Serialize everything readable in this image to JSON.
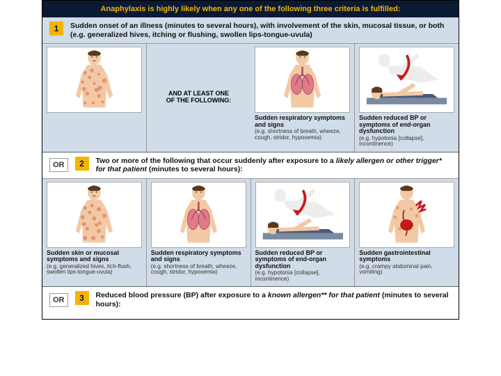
{
  "colors": {
    "header_bg": "#0b1a33",
    "header_fg": "#f5b400",
    "accent": "#f5b400",
    "panel_bg": "#d0dce8",
    "skin": "#f2c9a4",
    "hives": "#d77a5a",
    "hair": "#5a3a1f",
    "lung": "#e07a8a",
    "arrow": "#c61a1a",
    "ghost": "#d9d9d9",
    "bolt": "#c61a1a",
    "stomach": "#c61a1a"
  },
  "header": "Anaphylaxis is highly likely when any one of the following three criteria is fulfilled:",
  "criteria": [
    {
      "num": "1",
      "or": "",
      "text": "Sudden onset of an illness (minutes to several hours), with involvement of the skin, mucosal tissue, or both (e.g. generalized hives, itching or flushing, swollen lips-tongue-uvula)"
    },
    {
      "num": "2",
      "or": "OR",
      "text_html": "Two or more of the following that occur suddenly after exposure to a <i>likely allergen or other trigger*</i> <i>for that patient</i> (minutes to several hours):"
    },
    {
      "num": "3",
      "or": "OR",
      "text_html": "Reduced blood pressure (BP) after exposure to a <i>known allergen** for that patient</i> (minutes to several hours):"
    }
  ],
  "row1": {
    "mid_label": "AND AT LEAST ONE OF THE FOLLOWING:",
    "cells": [
      {
        "fig": "hives",
        "title": "",
        "detail": ""
      },
      {
        "fig": "label",
        "title": "",
        "detail": ""
      },
      {
        "fig": "lungs",
        "title": "Sudden respiratory symptoms and signs",
        "detail": "(e.g. shortness of breath, wheeze, cough, stridor, hypoxemia)"
      },
      {
        "fig": "bp",
        "title": "Sudden reduced BP or symptoms of end-organ dysfunction",
        "detail": "(e.g. hypotonia [collapse], incontinence)"
      }
    ]
  },
  "row2": {
    "cells": [
      {
        "fig": "hives",
        "title": "Sudden skin or mucosal symptoms and signs",
        "detail": "(e.g. generalized hives, itch-flush, swollen lips-tongue-uvula)"
      },
      {
        "fig": "lungs",
        "title": "Sudden respiratory symptoms and signs",
        "detail": "(e.g. shortness of breath, wheeze, cough, stridor, hypoxemia)"
      },
      {
        "fig": "bp",
        "title": "Sudden reduced BP or symptoms of end-organ dysfunction",
        "detail": "(e.g. hypotonia [collapse], incontinence)"
      },
      {
        "fig": "gi",
        "title": "Sudden gastrointestinal symptoms",
        "detail": "(e.g. crampy abdominal pain, vomiting)"
      }
    ]
  }
}
